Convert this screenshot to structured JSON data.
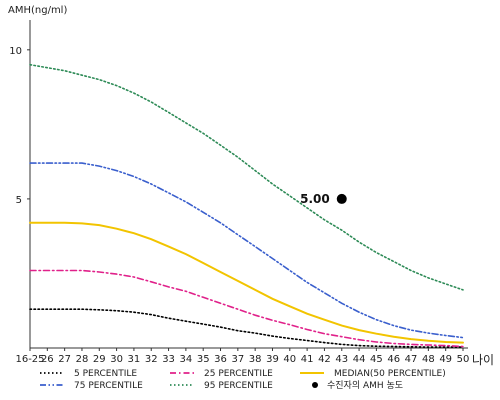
{
  "chart_data": {
    "type": "line",
    "ylabel": "AMH(ng/ml)",
    "xlabel": "나이",
    "x_categories": [
      "16-25",
      "26",
      "27",
      "28",
      "29",
      "30",
      "31",
      "32",
      "33",
      "34",
      "35",
      "36",
      "37",
      "38",
      "39",
      "40",
      "41",
      "42",
      "43",
      "44",
      "45",
      "46",
      "47",
      "48",
      "49",
      "50"
    ],
    "yticks": [
      5,
      10
    ],
    "ylim": [
      0,
      11
    ],
    "series": [
      {
        "name": "5 PERCENTILE",
        "color": "#000000",
        "dash": "dot",
        "values": [
          1.3,
          1.3,
          1.3,
          1.3,
          1.28,
          1.25,
          1.2,
          1.12,
          1.0,
          0.9,
          0.8,
          0.7,
          0.58,
          0.5,
          0.4,
          0.32,
          0.25,
          0.18,
          0.12,
          0.08,
          0.06,
          0.05,
          0.04,
          0.03,
          0.03,
          0.03
        ]
      },
      {
        "name": "75 PERCENTILE",
        "color": "#3a5fcd",
        "dash": "dashdotdot",
        "values": [
          6.2,
          6.2,
          6.2,
          6.2,
          6.1,
          5.95,
          5.75,
          5.5,
          5.2,
          4.9,
          4.55,
          4.2,
          3.8,
          3.4,
          3.0,
          2.6,
          2.2,
          1.85,
          1.5,
          1.2,
          0.95,
          0.75,
          0.6,
          0.5,
          0.42,
          0.35
        ]
      },
      {
        "name": "25 PERCENTILE",
        "color": "#e0218a",
        "dash": "dashdot",
        "values": [
          2.6,
          2.6,
          2.6,
          2.6,
          2.55,
          2.48,
          2.38,
          2.22,
          2.05,
          1.9,
          1.7,
          1.5,
          1.3,
          1.1,
          0.93,
          0.78,
          0.62,
          0.48,
          0.38,
          0.28,
          0.2,
          0.15,
          0.12,
          0.1,
          0.08,
          0.05
        ]
      },
      {
        "name": "95 PERCENTILE",
        "color": "#2e8b57",
        "dash": "dot",
        "values": [
          9.5,
          9.4,
          9.3,
          9.15,
          9.0,
          8.8,
          8.55,
          8.25,
          7.9,
          7.55,
          7.2,
          6.8,
          6.4,
          5.95,
          5.5,
          5.1,
          4.7,
          4.3,
          3.95,
          3.55,
          3.2,
          2.9,
          2.6,
          2.35,
          2.15,
          1.95
        ]
      },
      {
        "name": "MEDIAN(50 PERCENTILE)",
        "color": "#f2c400",
        "dash": "solid",
        "values": [
          4.2,
          4.2,
          4.2,
          4.18,
          4.12,
          4.0,
          3.85,
          3.65,
          3.4,
          3.15,
          2.85,
          2.55,
          2.25,
          1.95,
          1.65,
          1.4,
          1.15,
          0.95,
          0.75,
          0.6,
          0.48,
          0.38,
          0.3,
          0.24,
          0.2,
          0.18
        ]
      }
    ],
    "marker": {
      "x": "43",
      "y": 5.0,
      "label": "5.00",
      "legend": "수진자의 AMH 농도"
    },
    "legend_position": "bottom",
    "grid": false
  }
}
